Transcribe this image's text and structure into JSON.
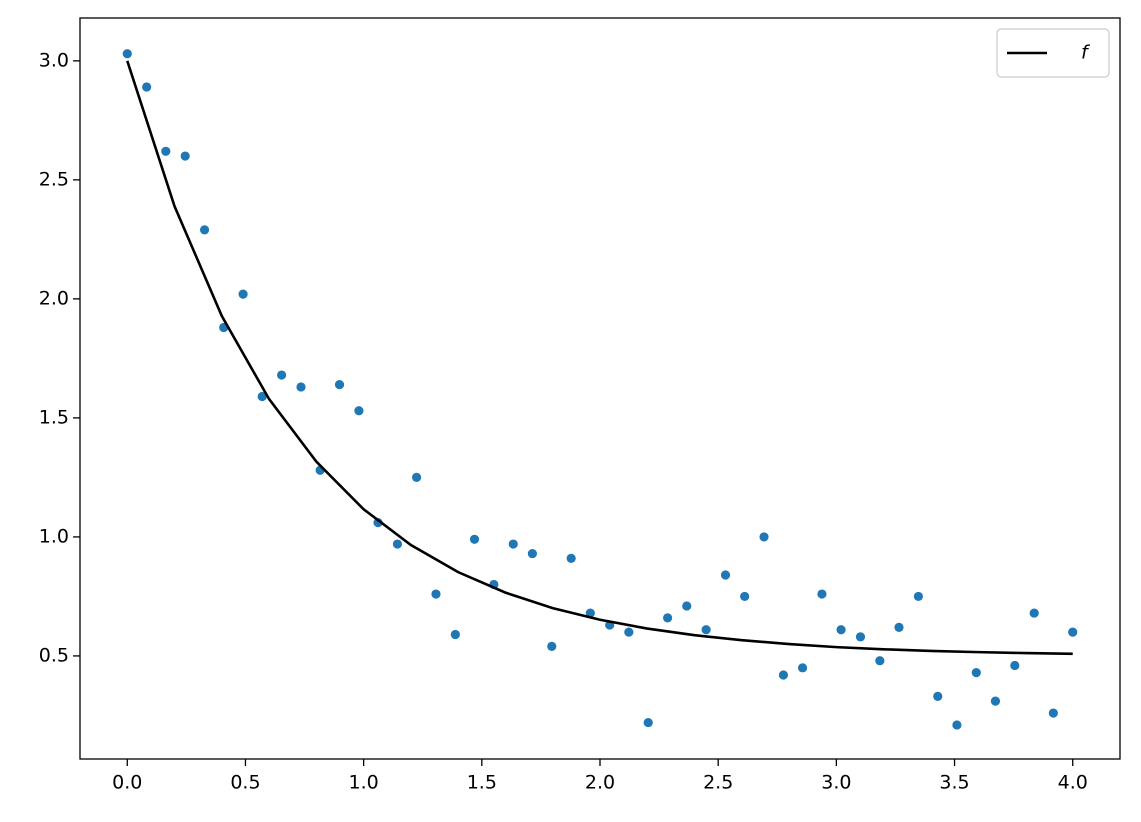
{
  "chart_data": {
    "type": "scatter",
    "series": [
      {
        "type": "scatter",
        "color": "#1f77b4",
        "x": [
          0,
          0.082,
          0.163,
          0.245,
          0.327,
          0.408,
          0.49,
          0.571,
          0.653,
          0.735,
          0.816,
          0.898,
          0.98,
          1.061,
          1.143,
          1.224,
          1.306,
          1.388,
          1.469,
          1.551,
          1.633,
          1.714,
          1.796,
          1.878,
          1.959,
          2.041,
          2.122,
          2.204,
          2.286,
          2.367,
          2.449,
          2.531,
          2.612,
          2.694,
          2.776,
          2.857,
          2.939,
          3.02,
          3.102,
          3.184,
          3.265,
          3.347,
          3.429,
          3.51,
          3.592,
          3.673,
          3.755,
          3.837,
          3.918,
          4.0
        ],
        "values": [
          3.03,
          2.89,
          2.62,
          2.6,
          2.29,
          1.88,
          2.02,
          1.59,
          1.68,
          1.63,
          1.28,
          1.64,
          1.53,
          1.06,
          0.97,
          1.25,
          0.76,
          0.59,
          0.99,
          0.8,
          0.97,
          0.93,
          0.54,
          0.91,
          0.68,
          0.63,
          0.6,
          0.22,
          0.66,
          0.71,
          0.61,
          0.84,
          0.75,
          1.0,
          0.42,
          0.45,
          0.76,
          0.61,
          0.58,
          0.48,
          0.62,
          0.75,
          0.33,
          0.21,
          0.43,
          0.31,
          0.46,
          0.68,
          0.26,
          0.6
        ]
      },
      {
        "type": "line",
        "name": "f",
        "color": "#000000",
        "x": [
          0,
          0.2,
          0.4,
          0.6,
          0.8,
          1.0,
          1.2,
          1.4,
          1.6,
          1.8,
          2.0,
          2.2,
          2.4,
          2.6,
          2.8,
          3.0,
          3.2,
          3.4,
          3.6,
          3.8,
          4.0
        ],
        "values": [
          3.0,
          2.389,
          1.928,
          1.579,
          1.316,
          1.116,
          0.966,
          0.852,
          0.766,
          0.701,
          0.652,
          0.615,
          0.587,
          0.566,
          0.55,
          0.537,
          0.528,
          0.521,
          0.516,
          0.512,
          0.509
        ]
      }
    ],
    "xlim": [
      -0.2,
      4.2
    ],
    "xticks": [
      {
        "value": 0,
        "label": "0.0"
      },
      0.5,
      {
        "value": 1,
        "label": "1.0"
      },
      1.5,
      {
        "value": 2,
        "label": "2.0"
      },
      2.5,
      {
        "value": 3,
        "label": "3.0"
      },
      3.5,
      {
        "value": 4,
        "label": "4.0"
      }
    ],
    "ylim": [
      0.067,
      3.18
    ],
    "yticks": [
      0.5,
      {
        "value": 1,
        "label": "1.0"
      },
      1.5,
      {
        "value": 2,
        "label": "2.0"
      },
      2.5,
      {
        "value": 3,
        "label": "3.0"
      }
    ],
    "legend": "upper right",
    "grid": false
  }
}
